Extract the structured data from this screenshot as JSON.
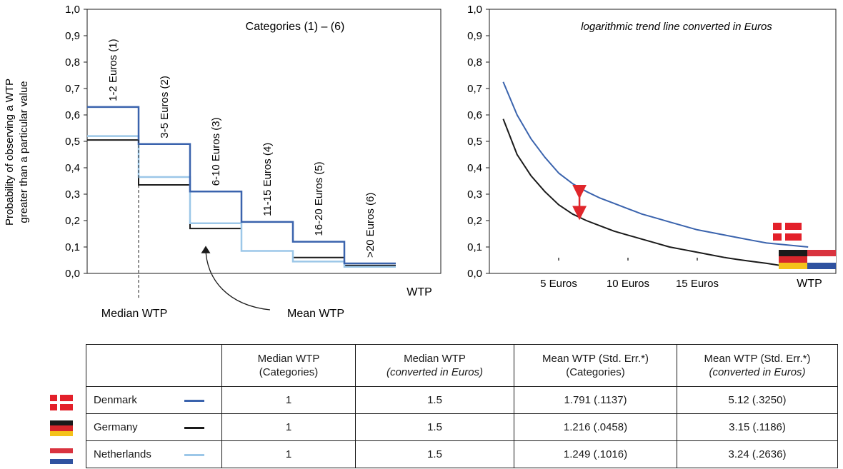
{
  "colors": {
    "denmark": "#3a63ad",
    "germany": "#1a1a1a",
    "netherlands": "#9cc7e8",
    "arrow_red": "#e0262b",
    "dk_red": "#e3202a",
    "de_black": "#1a1a1a",
    "de_red": "#d8262b",
    "de_gold": "#f4c21a",
    "nl_red": "#d9333f",
    "nl_blue": "#2f52a0"
  },
  "left_chart": {
    "ylabel_line1": "Probability of observing a WTP",
    "ylabel_line2": "greater than a particular value",
    "categories_label": "Categories (1) – (6)",
    "xlabel": "WTP",
    "median_label": "Median WTP",
    "mean_label": "Mean WTP"
  },
  "right_chart": {
    "title": "logarithmic trend line converted in Euros",
    "xlabel": "WTP"
  },
  "chart_data": [
    {
      "type": "line",
      "subtype": "step",
      "y_tick_labels": [
        "0,0",
        "0,1",
        "0,2",
        "0,3",
        "0,4",
        "0,5",
        "0,6",
        "0,7",
        "0,8",
        "0,9",
        "1,0"
      ],
      "ylim": [
        0,
        1
      ],
      "categories": [
        "1-2 Euros (1)",
        "3-5 Euros (2)",
        "6-10 Euros (3)",
        "11-15 Euros (4)",
        "16-20 Euros (5)",
        ">20 Euros (6)"
      ],
      "series": [
        {
          "color_key": "denmark",
          "values": [
            0.63,
            0.49,
            0.31,
            0.195,
            0.12,
            0.038
          ]
        },
        {
          "color_key": "germany",
          "values": [
            0.505,
            0.335,
            0.17,
            0.085,
            0.06,
            0.03
          ]
        },
        {
          "color_key": "netherlands",
          "values": [
            0.52,
            0.365,
            0.19,
            0.085,
            0.045,
            0.025
          ]
        }
      ],
      "median_dashed_y": 0.505,
      "grid": false,
      "annotations": [
        "Median WTP",
        "Mean WTP"
      ]
    },
    {
      "type": "line",
      "title": "logarithmic trend line converted in Euros",
      "y_tick_labels": [
        "0,0",
        "0,1",
        "0,2",
        "0,3",
        "0,4",
        "0,5",
        "0,6",
        "0,7",
        "0,8",
        "0,9",
        "1,0"
      ],
      "ylim": [
        0,
        1
      ],
      "x_tick_labels": [
        "5 Euros",
        "10 Euros",
        "15 Euros"
      ],
      "x_ticks": [
        5,
        10,
        15
      ],
      "xlim": [
        0,
        25
      ],
      "series": [
        {
          "color_key": "denmark",
          "x": [
            1,
            2,
            3,
            4,
            5,
            6,
            7,
            8,
            9,
            10,
            11,
            12,
            13,
            14,
            15,
            16,
            17,
            18,
            19,
            20,
            21,
            22,
            23
          ],
          "y": [
            0.725,
            0.6,
            0.51,
            0.44,
            0.38,
            0.34,
            0.31,
            0.285,
            0.265,
            0.245,
            0.225,
            0.21,
            0.195,
            0.18,
            0.165,
            0.155,
            0.145,
            0.135,
            0.125,
            0.115,
            0.11,
            0.105,
            0.1
          ]
        },
        {
          "color_key": "germany",
          "x": [
            1,
            2,
            3,
            4,
            5,
            6,
            7,
            8,
            9,
            10,
            11,
            12,
            13,
            14,
            15,
            16,
            17,
            18,
            19,
            20,
            21,
            22,
            23
          ],
          "y": [
            0.585,
            0.45,
            0.37,
            0.31,
            0.26,
            0.225,
            0.2,
            0.18,
            0.16,
            0.145,
            0.13,
            0.115,
            0.1,
            0.09,
            0.08,
            0.07,
            0.06,
            0.052,
            0.045,
            0.038,
            0.03,
            0.025,
            0.02
          ]
        }
      ],
      "arrow_at_x": 6.5,
      "grid": false
    }
  ],
  "table": {
    "headers": [
      "",
      {
        "line1": "Median WTP",
        "line2": "(Categories)",
        "italic2": false
      },
      {
        "line1": "Median WTP",
        "line2": "(converted in Euros)",
        "italic2": true
      },
      {
        "line1": "Mean WTP (Std. Err.*)",
        "line2": "(Categories)",
        "italic2": false
      },
      {
        "line1": "Mean WTP (Std. Err.*)",
        "line2": "(converted in Euros)",
        "italic2": true
      }
    ],
    "rows": [
      {
        "country": "Denmark",
        "color_key": "denmark",
        "median_cat": "1",
        "median_eur": "1.5",
        "mean_cat": "1.791 (.1137)",
        "mean_eur": "5.12 (.3250)"
      },
      {
        "country": "Germany",
        "color_key": "germany",
        "median_cat": "1",
        "median_eur": "1.5",
        "mean_cat": "1.216 (.0458)",
        "mean_eur": "3.15 (.1186)"
      },
      {
        "country": "Netherlands",
        "color_key": "netherlands",
        "median_cat": "1",
        "median_eur": "1.5",
        "mean_cat": "1.249 (.1016)",
        "mean_eur": "3.24 (.2636)"
      }
    ]
  }
}
